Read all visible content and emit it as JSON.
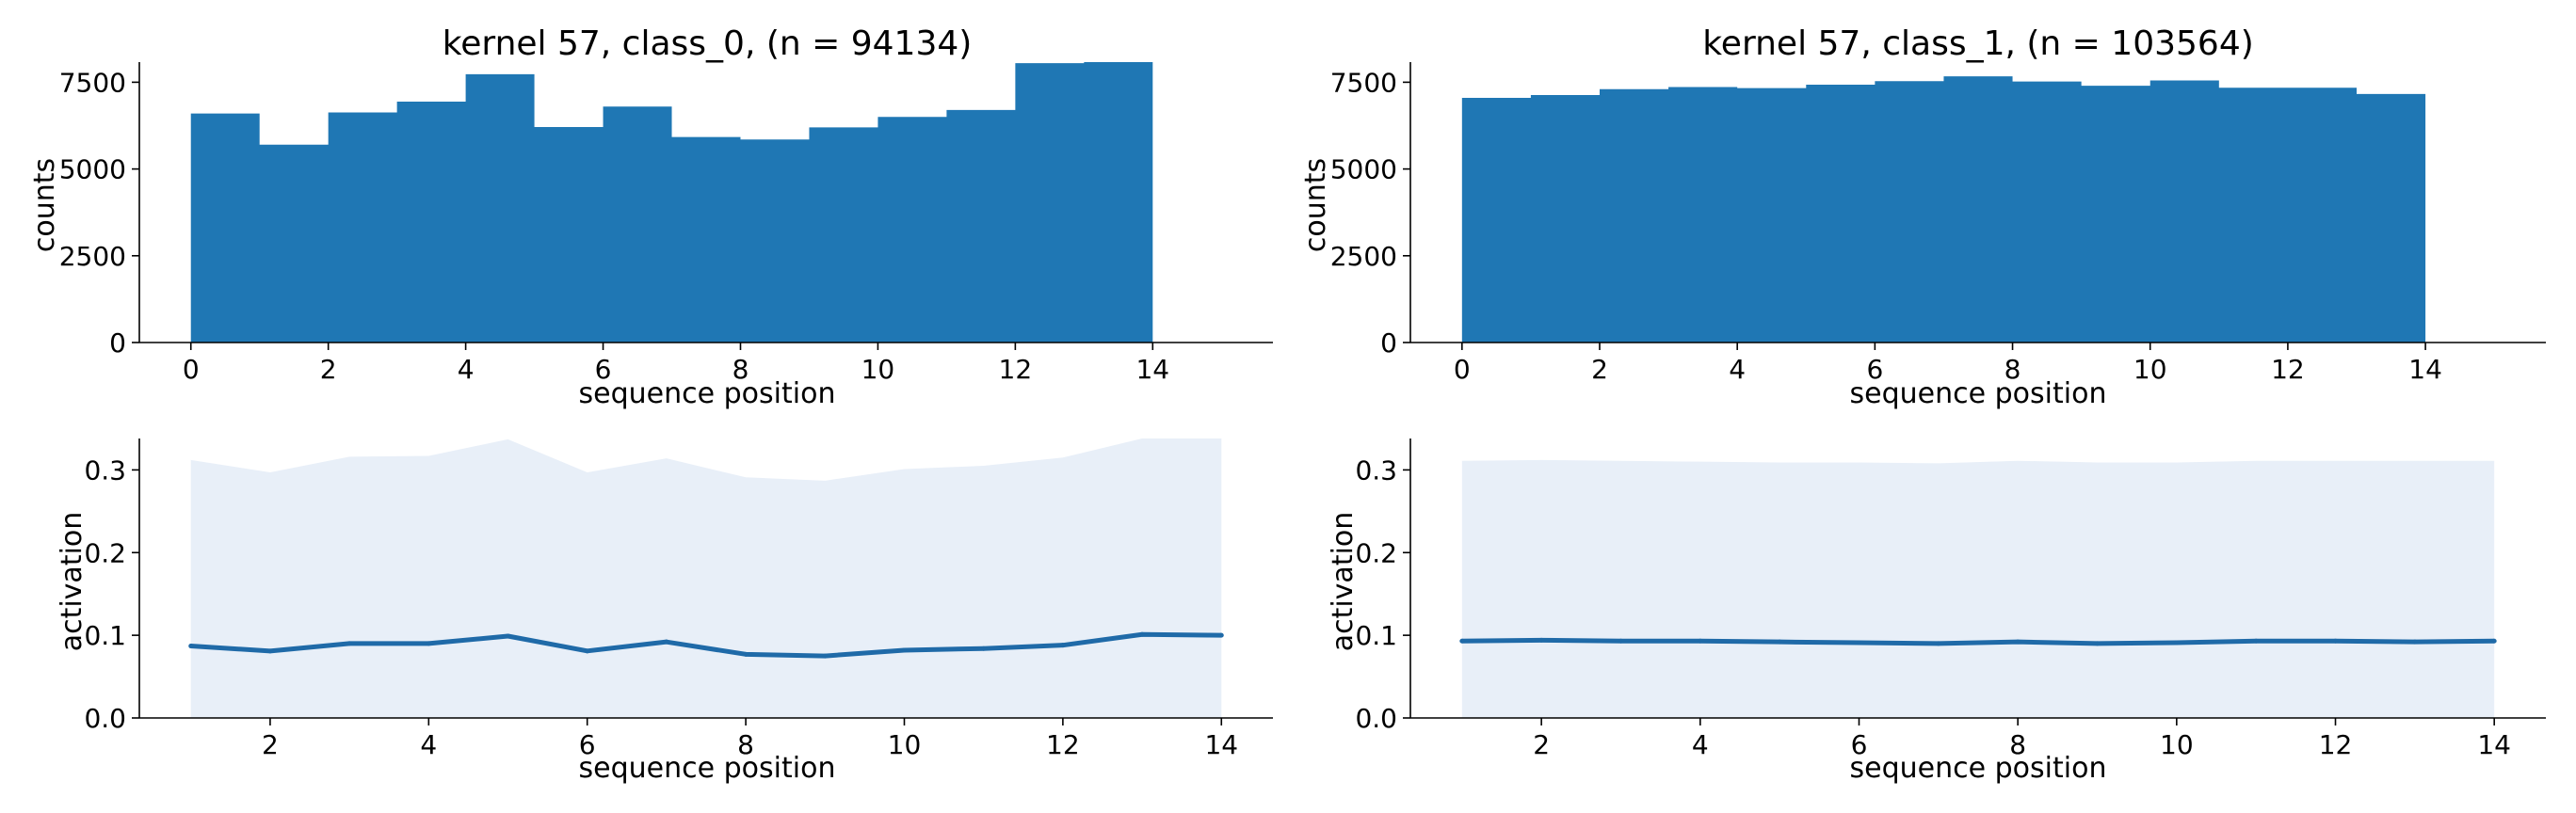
{
  "figure": {
    "background": "#ffffff"
  },
  "chart_data": [
    {
      "type": "bar",
      "title": "kernel 57, class_0, (n = 94134)",
      "xlabel": "sequence position",
      "ylabel": "counts",
      "bin_edges": [
        0,
        1,
        2,
        3,
        4,
        5,
        6,
        7,
        8,
        9,
        10,
        11,
        12,
        13,
        14
      ],
      "values": [
        6600,
        5700,
        6630,
        6940,
        7730,
        6210,
        6800,
        5920,
        5850,
        6200,
        6500,
        6700,
        8050,
        8080
      ],
      "xlim": [
        -0.75,
        15.75
      ],
      "ylim": [
        0,
        8080
      ],
      "xticks": [
        0,
        2,
        4,
        6,
        8,
        10,
        12,
        14
      ],
      "yticks": [
        0,
        2500,
        5000,
        7500
      ],
      "color": "#1f77b4",
      "grid": false
    },
    {
      "type": "bar",
      "title": "kernel 57, class_1, (n = 103564)",
      "xlabel": "sequence position",
      "ylabel": "counts",
      "bin_edges": [
        0,
        1,
        2,
        3,
        4,
        5,
        6,
        7,
        8,
        9,
        10,
        11,
        12,
        13,
        14
      ],
      "values": [
        7050,
        7130,
        7300,
        7360,
        7330,
        7430,
        7530,
        7670,
        7520,
        7400,
        7550,
        7340,
        7340,
        7160
      ],
      "xlim": [
        -0.75,
        15.75
      ],
      "ylim": [
        0,
        8080
      ],
      "xticks": [
        0,
        2,
        4,
        6,
        8,
        10,
        12,
        14
      ],
      "yticks": [
        0,
        2500,
        5000,
        7500
      ],
      "color": "#1f77b4",
      "grid": false
    },
    {
      "type": "area",
      "xlabel": "sequence position",
      "ylabel": "activation",
      "x": [
        1,
        2,
        3,
        4,
        5,
        6,
        7,
        8,
        9,
        10,
        11,
        12,
        13,
        14
      ],
      "series": [
        {
          "kind": "band",
          "lower": [
            0,
            0,
            0,
            0,
            0,
            0,
            0,
            0,
            0,
            0,
            0,
            0,
            0,
            0
          ],
          "upper": [
            0.312,
            0.297,
            0.316,
            0.317,
            0.337,
            0.297,
            0.314,
            0.291,
            0.287,
            0.301,
            0.305,
            0.315,
            0.338,
            0.338
          ],
          "color": "#e8eff8"
        },
        {
          "kind": "line",
          "values": [
            0.087,
            0.081,
            0.09,
            0.09,
            0.099,
            0.081,
            0.092,
            0.077,
            0.075,
            0.082,
            0.084,
            0.088,
            0.101,
            0.1
          ],
          "color": "#1f6aa8"
        }
      ],
      "xlim": [
        0.35,
        14.65
      ],
      "ylim": [
        0,
        0.338
      ],
      "xticks": [
        2,
        4,
        6,
        8,
        10,
        12,
        14
      ],
      "yticks": [
        0.0,
        0.1,
        0.2,
        0.3
      ],
      "grid": false
    },
    {
      "type": "area",
      "xlabel": "sequence position",
      "ylabel": "activation",
      "x": [
        1,
        2,
        3,
        4,
        5,
        6,
        7,
        8,
        9,
        10,
        11,
        12,
        13,
        14
      ],
      "series": [
        {
          "kind": "band",
          "lower": [
            0,
            0,
            0,
            0,
            0,
            0,
            0,
            0,
            0,
            0,
            0,
            0,
            0,
            0
          ],
          "upper": [
            0.311,
            0.312,
            0.311,
            0.31,
            0.309,
            0.309,
            0.308,
            0.311,
            0.309,
            0.309,
            0.311,
            0.311,
            0.311,
            0.311
          ],
          "color": "#e8eff8"
        },
        {
          "kind": "line",
          "values": [
            0.093,
            0.094,
            0.093,
            0.093,
            0.092,
            0.091,
            0.09,
            0.092,
            0.09,
            0.091,
            0.093,
            0.093,
            0.092,
            0.093
          ],
          "color": "#1f6aa8"
        }
      ],
      "xlim": [
        0.35,
        14.65
      ],
      "ylim": [
        0,
        0.338
      ],
      "xticks": [
        2,
        4,
        6,
        8,
        10,
        12,
        14
      ],
      "yticks": [
        0.0,
        0.1,
        0.2,
        0.3
      ],
      "grid": false
    }
  ]
}
